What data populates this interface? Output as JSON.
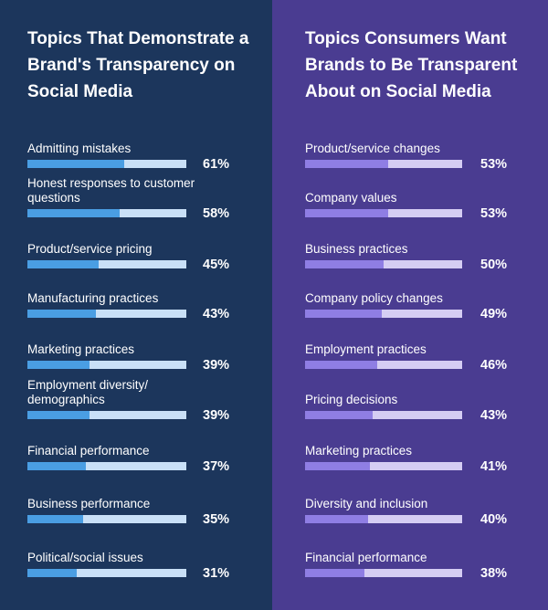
{
  "chart_data": [
    {
      "type": "bar",
      "title": "Topics That Demonstrate a Brand's Transparency on Social Media",
      "orientation": "horizontal",
      "xlim": [
        0,
        100
      ],
      "unit": "%",
      "categories": [
        "Admitting mistakes",
        "Honest responses to customer questions",
        "Product/service pricing",
        "Manufacturing practices",
        "Marketing practices",
        "Employment diversity/ demographics",
        "Financial performance",
        "Business performance",
        "Political/social issues"
      ],
      "values": [
        61,
        58,
        45,
        43,
        39,
        39,
        37,
        35,
        31
      ],
      "labels": [
        "61%",
        "58%",
        "45%",
        "43%",
        "39%",
        "39%",
        "37%",
        "35%",
        "31%"
      ],
      "colors": {
        "fill": "#4a9ee3",
        "track": "#c9e0f7",
        "background": "#1c365c"
      }
    },
    {
      "type": "bar",
      "title": "Topics Consumers Want Brands to Be Transparent About on Social Media",
      "orientation": "horizontal",
      "xlim": [
        0,
        100
      ],
      "unit": "%",
      "categories": [
        "Product/service changes",
        "Company values",
        "Business practices",
        "Company policy changes",
        "Employment practices",
        "Pricing decisions",
        "Marketing practices",
        "Diversity and inclusion",
        "Financial performance"
      ],
      "values": [
        53,
        53,
        50,
        49,
        46,
        43,
        41,
        40,
        38
      ],
      "labels": [
        "53%",
        "53%",
        "50%",
        "49%",
        "46%",
        "43%",
        "41%",
        "40%",
        "38%"
      ],
      "colors": {
        "fill": "#8f7ee4",
        "track": "#d5cdf3",
        "background": "#4a3c91"
      }
    }
  ]
}
